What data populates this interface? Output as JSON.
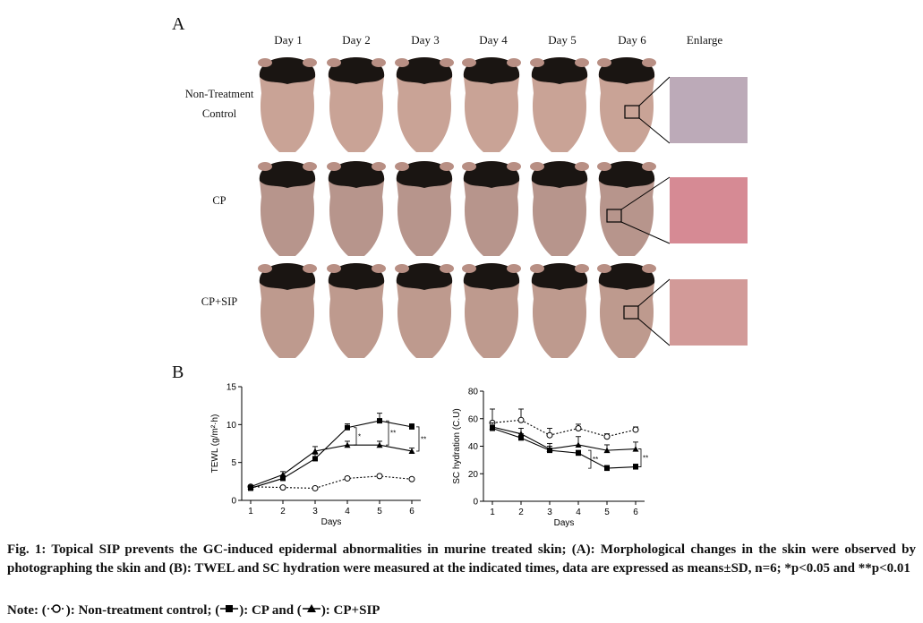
{
  "figure": {
    "panel_a_letter": "A",
    "panel_b_letter": "B",
    "days": [
      "Day 1",
      "Day 2",
      "Day 3",
      "Day 4",
      "Day 5",
      "Day 6"
    ],
    "enlarge_label": "Enlarge",
    "rows": [
      {
        "label_line1": "Non-Treatment",
        "label_line2": "Control",
        "skin": "#c9a396",
        "enlarge_color": "#bcaab8"
      },
      {
        "label_line1": "CP",
        "label_line2": "",
        "skin": "#b7958c",
        "enlarge_color": "#d68a94"
      },
      {
        "label_line1": "CP+SIP",
        "label_line2": "",
        "skin": "#be9a8e",
        "enlarge_color": "#d29a98"
      }
    ]
  },
  "chart_data": [
    {
      "type": "line",
      "xlabel": "Days",
      "ylabel": "TEWL (g/m²·h)",
      "x": [
        1,
        2,
        3,
        4,
        5,
        6
      ],
      "ylim": [
        0,
        15
      ],
      "yticks": [
        0,
        5,
        10,
        15
      ],
      "xticks": [
        1,
        2,
        3,
        4,
        5,
        6
      ],
      "series": [
        {
          "marker": "open-circle",
          "dashed": true,
          "values": [
            1.8,
            1.7,
            1.6,
            2.9,
            3.2,
            2.8
          ],
          "errors": [
            0.1,
            0.1,
            0.1,
            0.2,
            0.2,
            0.2
          ]
        },
        {
          "marker": "square",
          "dashed": false,
          "values": [
            1.6,
            2.9,
            5.5,
            9.6,
            10.5,
            9.7
          ],
          "errors": [
            0.2,
            0.4,
            0.6,
            0.5,
            1.0,
            0.4
          ]
        },
        {
          "marker": "triangle",
          "dashed": false,
          "values": [
            1.8,
            3.4,
            6.5,
            7.3,
            7.3,
            6.5
          ],
          "errors": [
            0.2,
            0.4,
            0.6,
            0.5,
            0.5,
            0.4
          ]
        }
      ],
      "annotations": [
        "*",
        "**",
        "**"
      ]
    },
    {
      "type": "line",
      "xlabel": "Days",
      "ylabel": "SC hydration (C.U)",
      "x": [
        1,
        2,
        3,
        4,
        5,
        6
      ],
      "ylim": [
        0,
        80
      ],
      "yticks": [
        0,
        20,
        40,
        60,
        80
      ],
      "xticks": [
        1,
        2,
        3,
        4,
        5,
        6
      ],
      "series": [
        {
          "marker": "open-circle",
          "dashed": true,
          "values": [
            57,
            59,
            48,
            53,
            47,
            52
          ],
          "errors": [
            10,
            8,
            5,
            3,
            2,
            2
          ]
        },
        {
          "marker": "square",
          "dashed": false,
          "values": [
            53,
            46,
            37,
            35,
            24,
            25
          ],
          "errors": [
            2,
            3,
            3,
            2,
            2,
            2
          ]
        },
        {
          "marker": "triangle",
          "dashed": false,
          "values": [
            54,
            49,
            38,
            41,
            37,
            38
          ],
          "errors": [
            3,
            4,
            4,
            6,
            4,
            5
          ]
        }
      ],
      "annotations": [
        "**",
        "**"
      ]
    }
  ],
  "caption": {
    "text": "Fig. 1: Topical SIP prevents the GC-induced epidermal abnormalities in murine treated skin; (A): Morphological changes in the skin were observed by photographing the skin and (B): TWEL and SC hydration were measured at the indicated times, data are expressed as means±SD, n=6; *p<0.05 and **p<0.01",
    "note_prefix": "Note: (",
    "note_mid1": "): Non-treatment control; (",
    "note_mid2": "): CP and (",
    "note_end": "): CP+SIP"
  }
}
